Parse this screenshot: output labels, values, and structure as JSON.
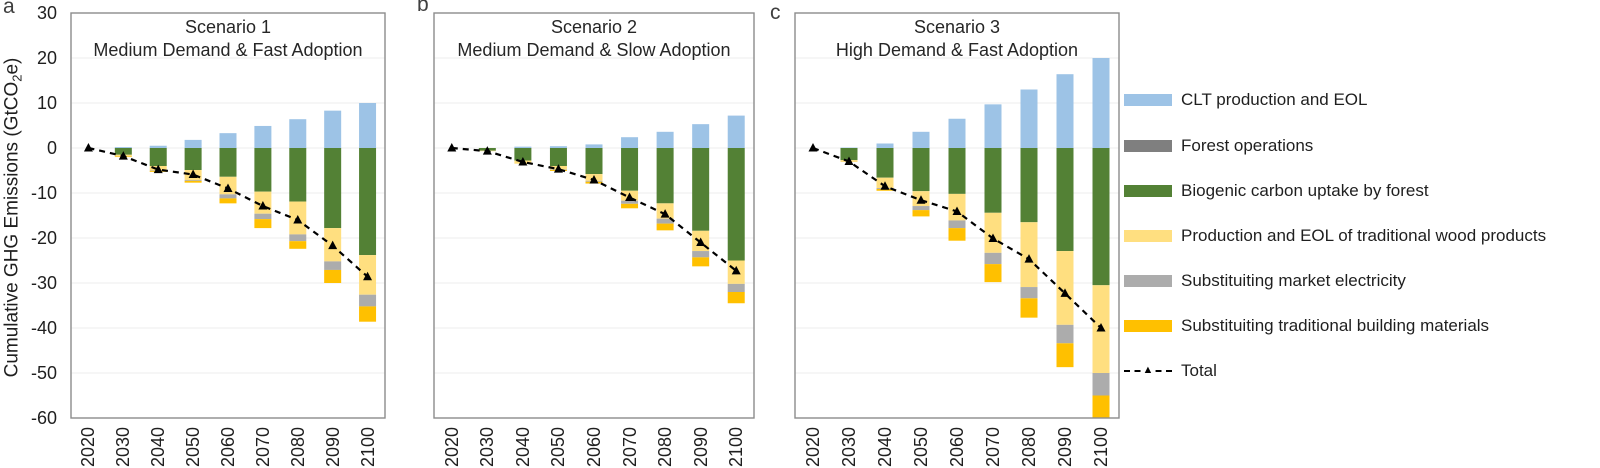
{
  "y_axis": {
    "label_prefix": "Cumulative GHG Emissions (GtCO",
    "label_sub": "2",
    "label_suffix": "e)",
    "ticks": [
      30,
      20,
      10,
      0,
      -10,
      -20,
      -30,
      -40,
      -50,
      -60
    ],
    "max": 30,
    "min": -60
  },
  "x_axis": {
    "categories": [
      "2020",
      "2030",
      "2040",
      "2050",
      "2060",
      "2070",
      "2080",
      "2090",
      "2100"
    ]
  },
  "panels": [
    {
      "letter": "a",
      "title_line1": "Scenario 1",
      "title_line2": "Medium Demand & Fast Adoption"
    },
    {
      "letter": "b",
      "title_line1": "Scenario 2",
      "title_line2": "Medium Demand & Slow Adoption"
    },
    {
      "letter": "c",
      "title_line1": "Scenario 3",
      "title_line2": "High Demand & Fast Adoption"
    }
  ],
  "legend": {
    "items": [
      {
        "label": "CLT production and EOL",
        "type": "swatch",
        "color": "#9DC3E6"
      },
      {
        "label": "Forest operations",
        "type": "swatch",
        "color": "#7F7F7F"
      },
      {
        "label": "Biogenic carbon uptake by forest",
        "type": "swatch",
        "color": "#538135"
      },
      {
        "label": "Production and EOL of traditional wood products",
        "type": "swatch",
        "color": "#FFDF80"
      },
      {
        "label": "Substituiting market electricity",
        "type": "swatch",
        "color": "#ACACAC"
      },
      {
        "label": "Substituiting traditional building materials",
        "type": "swatch",
        "color": "#FFC000"
      },
      {
        "label": "Total",
        "type": "line",
        "color": "#000000"
      }
    ]
  },
  "colors": {
    "grid": "#ECECEC",
    "frame": "#8C8C8C",
    "total_line": "#000000"
  },
  "chart_data": [
    {
      "type": "bar",
      "subtype": "stacked-with-total-line",
      "title": "Scenario 1 Medium Demand & Fast Adoption",
      "ylabel": "Cumulative GHG Emissions (GtCO2e)",
      "ylim": [
        -60,
        30
      ],
      "grid": true,
      "categories": [
        "2020",
        "2030",
        "2040",
        "2050",
        "2060",
        "2070",
        "2080",
        "2090",
        "2100"
      ],
      "series": [
        {
          "name": "CLT production and EOL",
          "color": "#9DC3E6",
          "values": [
            0,
            0.2,
            0.5,
            1.8,
            3.3,
            4.9,
            6.4,
            8.3,
            10.0
          ]
        },
        {
          "name": "Forest operations",
          "color": "#7F7F7F",
          "values": [
            0,
            0,
            0,
            0,
            0,
            0,
            0,
            0,
            0
          ]
        },
        {
          "name": "Biogenic carbon uptake by forest",
          "color": "#538135",
          "values": [
            0,
            -1.5,
            -4.0,
            -4.9,
            -6.4,
            -9.7,
            -11.9,
            -17.8,
            -23.8
          ]
        },
        {
          "name": "Production and EOL of traditional wood products",
          "color": "#FFDF80",
          "values": [
            0,
            -0.4,
            -1.0,
            -2.2,
            -3.9,
            -4.9,
            -7.3,
            -7.4,
            -8.8
          ]
        },
        {
          "name": "Substituiting market electricity",
          "color": "#ACACAC",
          "values": [
            0,
            0,
            -0.1,
            -0.2,
            -0.9,
            -1.2,
            -1.5,
            -1.9,
            -2.6
          ]
        },
        {
          "name": "Substituiting traditional building materials",
          "color": "#FFC000",
          "values": [
            0,
            -0.1,
            -0.2,
            -0.4,
            -1.1,
            -2.0,
            -1.7,
            -2.9,
            -3.4
          ]
        },
        {
          "name": "Total",
          "type": "line",
          "color": "#000000",
          "values": [
            0,
            -1.8,
            -4.8,
            -5.9,
            -9.0,
            -12.9,
            -16.0,
            -21.7,
            -28.6
          ]
        }
      ]
    },
    {
      "type": "bar",
      "subtype": "stacked-with-total-line",
      "title": "Scenario 2 Medium Demand & Slow Adoption",
      "ylabel": "Cumulative GHG Emissions (GtCO2e)",
      "ylim": [
        -60,
        30
      ],
      "grid": true,
      "categories": [
        "2020",
        "2030",
        "2040",
        "2050",
        "2060",
        "2070",
        "2080",
        "2090",
        "2100"
      ],
      "series": [
        {
          "name": "CLT production and EOL",
          "color": "#9DC3E6",
          "values": [
            0,
            0,
            0.3,
            0.4,
            0.8,
            2.4,
            3.6,
            5.3,
            7.2
          ]
        },
        {
          "name": "Forest operations",
          "color": "#7F7F7F",
          "values": [
            0,
            0,
            0,
            0,
            0,
            0,
            0,
            0,
            0
          ]
        },
        {
          "name": "Biogenic carbon uptake by forest",
          "color": "#538135",
          "values": [
            0,
            -0.6,
            -2.8,
            -4.0,
            -5.8,
            -9.5,
            -12.3,
            -18.4,
            -25.0
          ]
        },
        {
          "name": "Production and EOL of traditional wood products",
          "color": "#FFDF80",
          "values": [
            0,
            -0.1,
            -0.5,
            -0.8,
            -1.5,
            -2.2,
            -3.4,
            -4.5,
            -5.2
          ]
        },
        {
          "name": "Substituiting market electricity",
          "color": "#ACACAC",
          "values": [
            0,
            0,
            0,
            -0.1,
            -0.2,
            -0.7,
            -1.1,
            -1.4,
            -1.8
          ]
        },
        {
          "name": "Substituiting traditional building materials",
          "color": "#FFC000",
          "values": [
            0,
            0,
            -0.1,
            -0.2,
            -0.4,
            -1.0,
            -1.5,
            -2.0,
            -2.5
          ]
        },
        {
          "name": "Total",
          "type": "line",
          "color": "#000000",
          "values": [
            0,
            -0.7,
            -3.1,
            -4.7,
            -7.1,
            -11.0,
            -14.7,
            -21.0,
            -27.3
          ]
        }
      ]
    },
    {
      "type": "bar",
      "subtype": "stacked-with-total-line",
      "title": "Scenario 3 High Demand & Fast Adoption",
      "ylabel": "Cumulative GHG Emissions (GtCO2e)",
      "ylim": [
        -60,
        30
      ],
      "grid": true,
      "categories": [
        "2020",
        "2030",
        "2040",
        "2050",
        "2060",
        "2070",
        "2080",
        "2090",
        "2100"
      ],
      "series": [
        {
          "name": "CLT production and EOL",
          "color": "#9DC3E6",
          "values": [
            0,
            0.1,
            1.0,
            3.6,
            6.5,
            9.7,
            13.0,
            16.4,
            20.0
          ]
        },
        {
          "name": "Forest operations",
          "color": "#7F7F7F",
          "values": [
            0,
            0,
            0,
            0,
            0,
            0,
            0,
            0,
            0
          ]
        },
        {
          "name": "Biogenic carbon uptake by forest",
          "color": "#538135",
          "values": [
            0,
            -2.7,
            -6.6,
            -9.6,
            -10.2,
            -14.4,
            -16.5,
            -22.9,
            -30.5
          ]
        },
        {
          "name": "Production and EOL of traditional wood products",
          "color": "#FFDF80",
          "values": [
            0,
            -0.4,
            -2.3,
            -3.3,
            -5.9,
            -8.9,
            -14.4,
            -16.4,
            -19.5
          ]
        },
        {
          "name": "Substituiting market electricity",
          "color": "#ACACAC",
          "values": [
            0,
            0,
            -0.2,
            -0.9,
            -1.7,
            -2.5,
            -2.5,
            -4.1,
            -5.0
          ]
        },
        {
          "name": "Substituiting traditional building materials",
          "color": "#FFC000",
          "values": [
            0,
            0,
            -0.4,
            -1.4,
            -2.8,
            -4.0,
            -4.3,
            -5.3,
            -5.0
          ]
        },
        {
          "name": "Total",
          "type": "line",
          "color": "#000000",
          "values": [
            0,
            -3.0,
            -8.5,
            -11.6,
            -14.1,
            -20.1,
            -24.7,
            -32.3,
            -40.0
          ]
        }
      ]
    }
  ]
}
